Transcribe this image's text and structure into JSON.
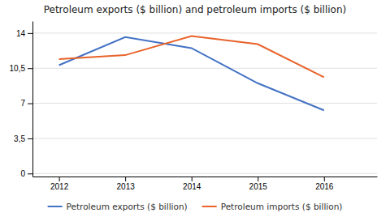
{
  "chart_data": {
    "type": "line",
    "title": "Petroleum exports ($ billion) and petroleum imports ($ billion)",
    "x": [
      2012,
      2013,
      2014,
      2015,
      2016
    ],
    "series": [
      {
        "name": "Petroleum exports ($ billion)",
        "color": "#4472C4",
        "values": [
          10.8,
          13.6,
          12.5,
          9.0,
          6.3
        ]
      },
      {
        "name": "Petroleum imports ($ billion)",
        "color": "#E8622A",
        "values": [
          11.4,
          11.8,
          13.7,
          12.9,
          9.6
        ]
      }
    ],
    "xlim": [
      2011.6,
      2016.8
    ],
    "xticks": [
      2012,
      2013,
      2014,
      2015,
      2016
    ],
    "ylim": [
      -0.3,
      15.2
    ],
    "yticks": [
      0,
      {
        "value": 3.5,
        "label": "3,5"
      },
      7,
      {
        "value": 10.5,
        "label": "10,5"
      },
      14
    ],
    "grid": true,
    "legend": "bottom"
  }
}
